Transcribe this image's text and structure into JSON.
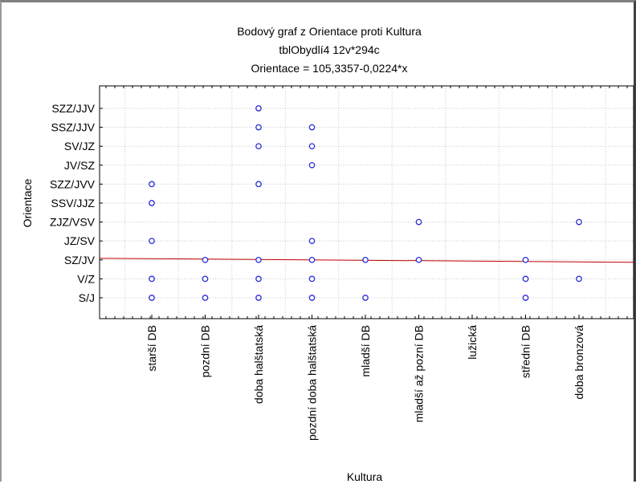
{
  "chart_data": {
    "type": "scatter",
    "title_lines": [
      "Bodový graf z Orientace proti Kultura",
      "tblObydlí4 12v*294c",
      "Orientace = 105,3357-0,0224*x"
    ],
    "xlabel": "Kultura",
    "ylabel": "Orientace",
    "categories_x": [
      "starší DB",
      "pozdní DB",
      "doba halštatská",
      "pozdní doba halštatská",
      "mladší DB",
      "mladší až pozní DB",
      "lužická",
      "střední DB",
      "doba bronzová"
    ],
    "categories_y": [
      "S/J",
      "V/Z",
      "SZ/JV",
      "JZ/SV",
      "ZJZ/VSV",
      "SSV/JJZ",
      "SZZ/JVV",
      "JV/SZ",
      "SV/JZ",
      "SSZ/JJV",
      "SZZ/JJV"
    ],
    "points": [
      {
        "x": "starší DB",
        "y": "SZZ/JVV"
      },
      {
        "x": "starší DB",
        "y": "SSV/JJZ"
      },
      {
        "x": "starší DB",
        "y": "JZ/SV"
      },
      {
        "x": "starší DB",
        "y": "V/Z"
      },
      {
        "x": "starší DB",
        "y": "S/J"
      },
      {
        "x": "pozdní DB",
        "y": "SZ/JV"
      },
      {
        "x": "pozdní DB",
        "y": "V/Z"
      },
      {
        "x": "pozdní DB",
        "y": "S/J"
      },
      {
        "x": "doba halštatská",
        "y": "SZZ/JJV"
      },
      {
        "x": "doba halštatská",
        "y": "SSZ/JJV"
      },
      {
        "x": "doba halštatská",
        "y": "SV/JZ"
      },
      {
        "x": "doba halštatská",
        "y": "SZZ/JVV"
      },
      {
        "x": "doba halštatská",
        "y": "SZ/JV"
      },
      {
        "x": "doba halštatská",
        "y": "V/Z"
      },
      {
        "x": "doba halštatská",
        "y": "S/J"
      },
      {
        "x": "pozdní doba halštatská",
        "y": "SSZ/JJV"
      },
      {
        "x": "pozdní doba halštatská",
        "y": "SV/JZ"
      },
      {
        "x": "pozdní doba halštatská",
        "y": "JV/SZ"
      },
      {
        "x": "pozdní doba halštatská",
        "y": "JZ/SV"
      },
      {
        "x": "pozdní doba halštatská",
        "y": "SZ/JV"
      },
      {
        "x": "pozdní doba halštatská",
        "y": "V/Z"
      },
      {
        "x": "pozdní doba halštatská",
        "y": "S/J"
      },
      {
        "x": "mladší DB",
        "y": "SZ/JV"
      },
      {
        "x": "mladší DB",
        "y": "S/J"
      },
      {
        "x": "mladší až pozní DB",
        "y": "ZJZ/VSV"
      },
      {
        "x": "mladší až pozní DB",
        "y": "SZ/JV"
      },
      {
        "x": "střední DB",
        "y": "SZ/JV"
      },
      {
        "x": "střední DB",
        "y": "V/Z"
      },
      {
        "x": "střední DB",
        "y": "S/J"
      },
      {
        "x": "doba bronzová",
        "y": "ZJZ/VSV"
      },
      {
        "x": "doba bronzová",
        "y": "V/Z"
      }
    ],
    "regression": {
      "intercept": 105.3357,
      "slope": -0.0224
    },
    "grid": true,
    "legend": "none",
    "colors": {
      "marker": "#2b2bd6",
      "fit_line": "#c00000",
      "grid": "#c8c8c8"
    }
  }
}
